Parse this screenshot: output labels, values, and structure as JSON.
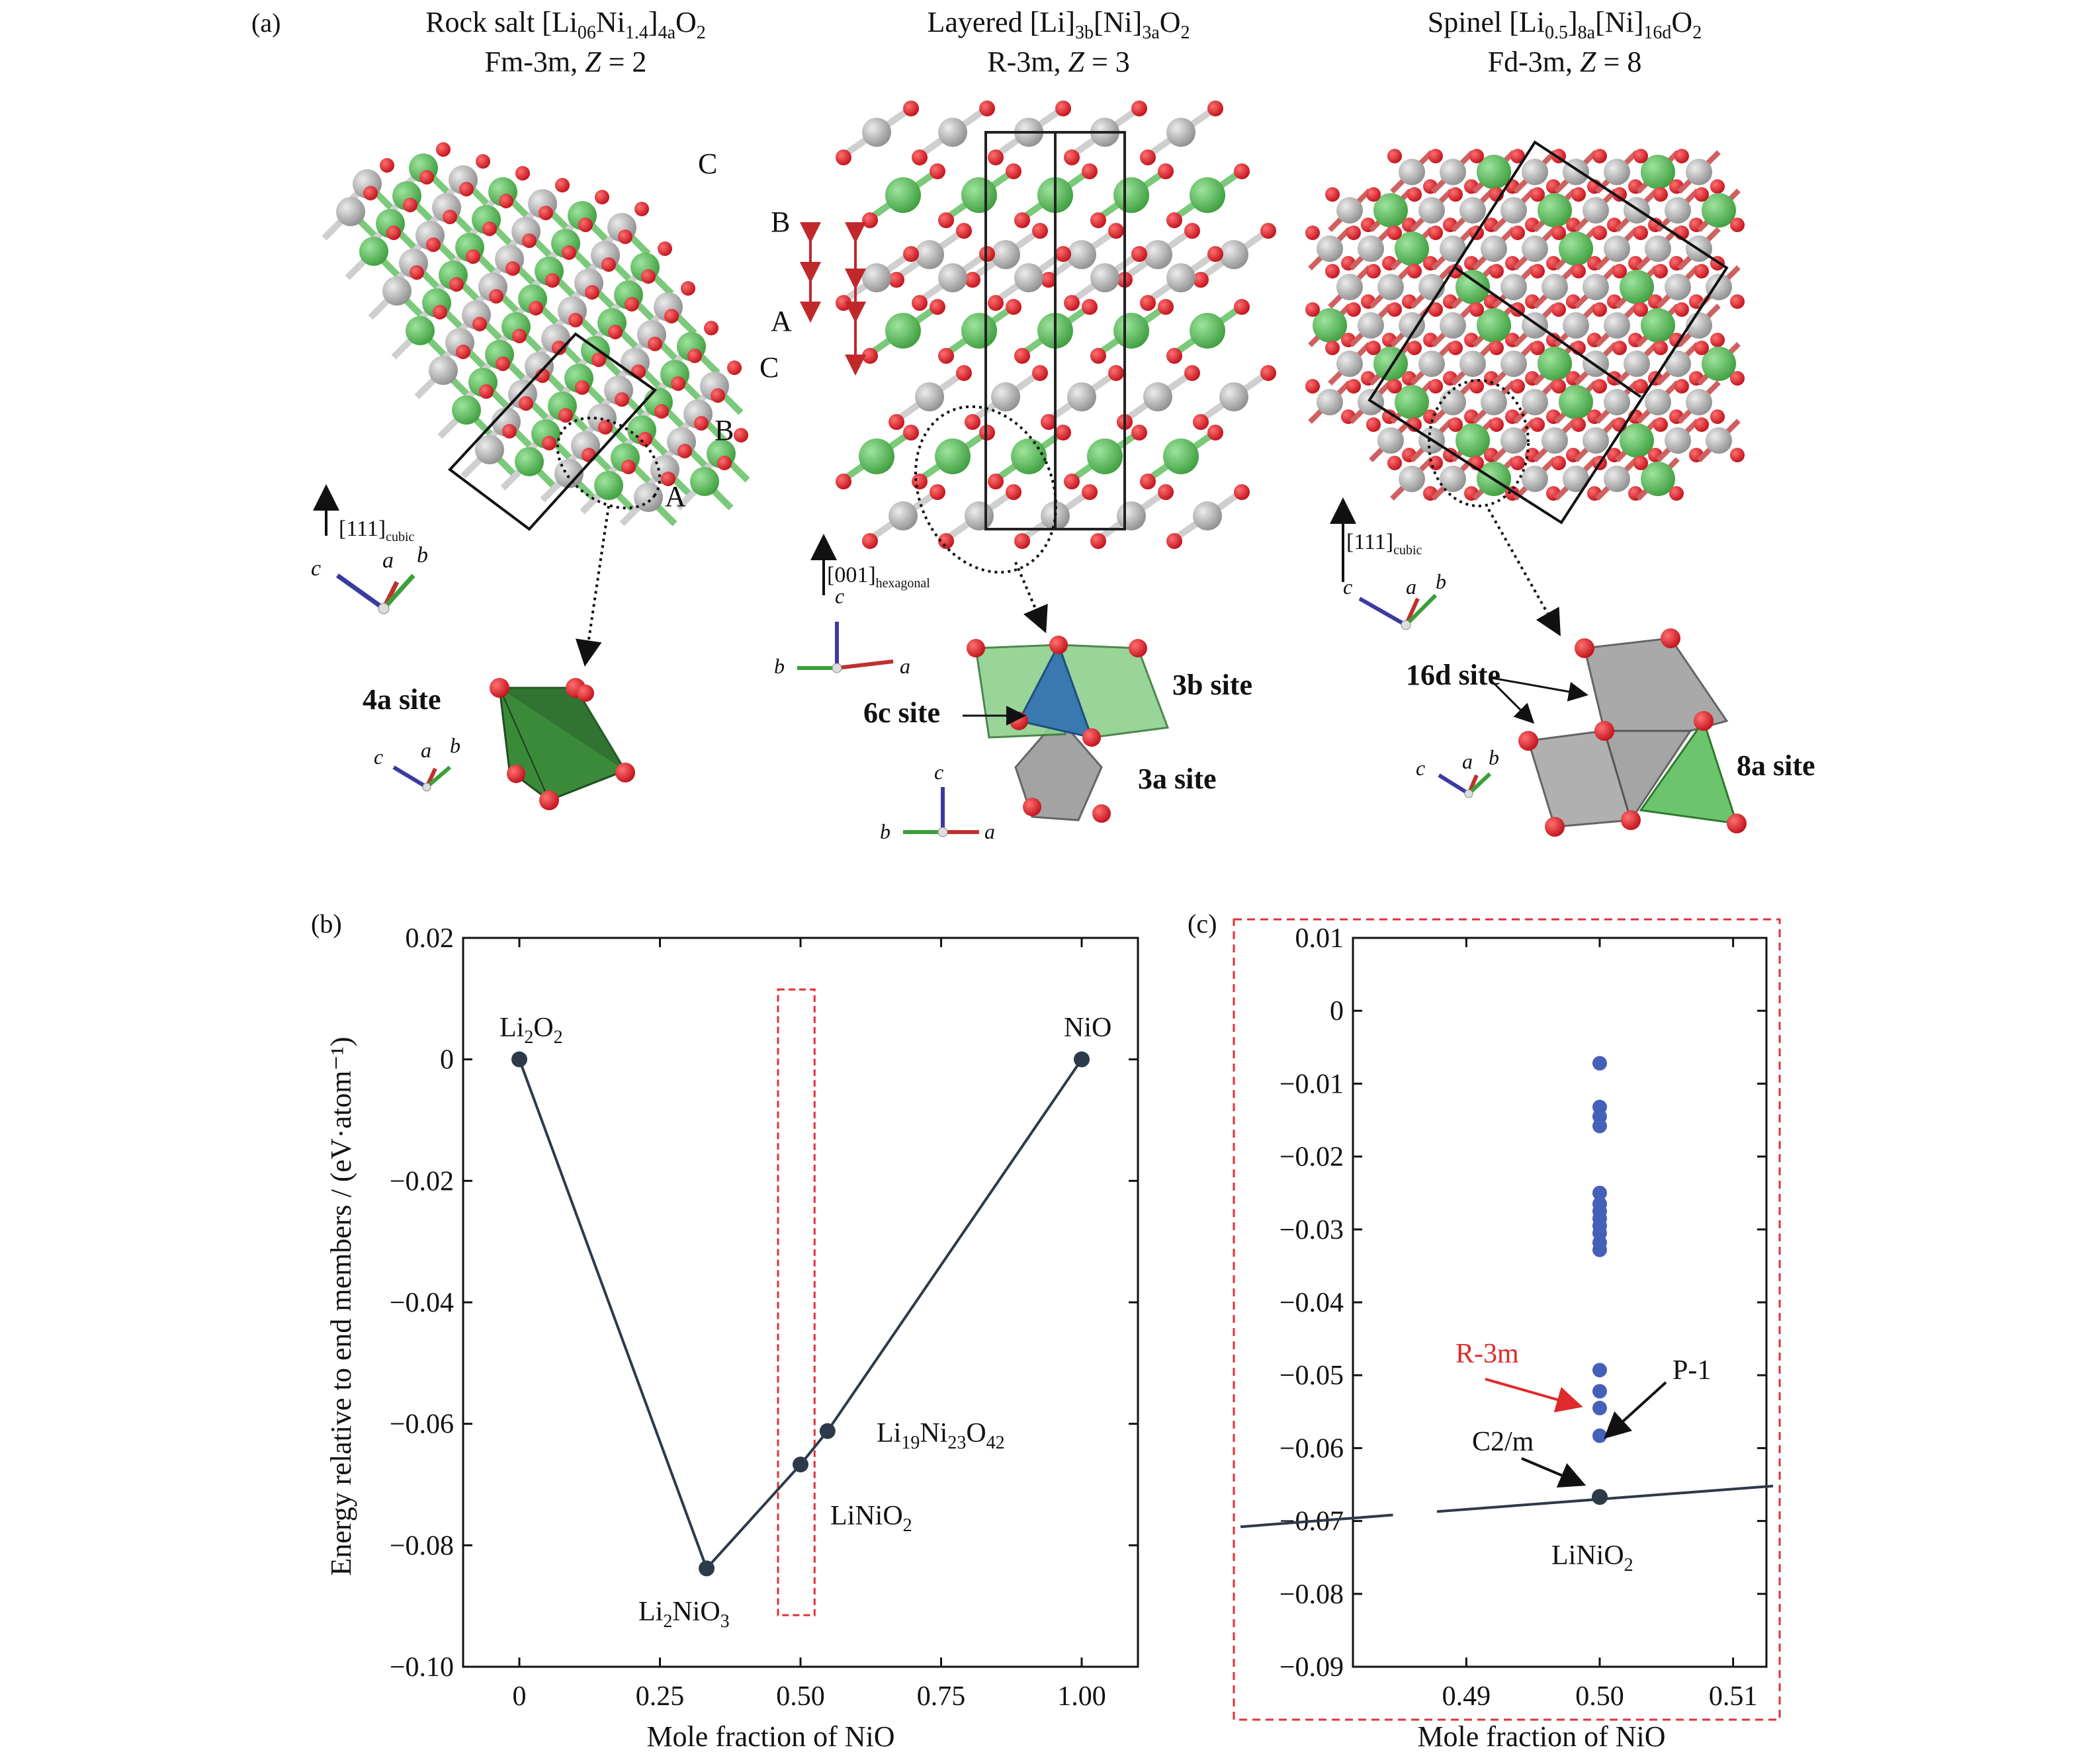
{
  "panel_a": {
    "label": "(a)",
    "rocksalt": {
      "title_prefix": "Rock salt [Li",
      "title_sub1": "06",
      "title_mid1": "Ni",
      "title_sub2": "1.4",
      "title_mid2": "]",
      "title_sub3": "4a",
      "title_mid3": "O",
      "title_sub4": "2",
      "spacegroup": "Fm-3m, ",
      "z_label": "Z",
      "z_value": " = 2",
      "stacking": [
        "C",
        "B",
        "A",
        "C",
        "B",
        "A"
      ],
      "axis_main": "[111]",
      "axis_sub": "cubic",
      "axes": {
        "a": "a",
        "b": "b",
        "c": "c"
      },
      "site_label": "4a site"
    },
    "layered": {
      "title_prefix": "Layered [Li]",
      "title_sub1": "3b",
      "title_mid1": "[Ni]",
      "title_sub2": "3a",
      "title_mid2": "O",
      "title_sub3": "2",
      "spacegroup": "R-3m, ",
      "z_label": "Z",
      "z_value": " = 3",
      "axis_main": "[001]",
      "axis_sub": "hexagonal",
      "axes": {
        "a": "a",
        "b": "b",
        "c": "c"
      },
      "site_6c": "6c site",
      "site_3b": "3b site",
      "site_3a": "3a site"
    },
    "spinel": {
      "title_prefix": "Spinel [Li",
      "title_sub1": "0.5",
      "title_mid1": "]",
      "title_sub2": "8a",
      "title_mid2": "[Ni]",
      "title_sub3": "16d",
      "title_mid3": "O",
      "title_sub4": "2",
      "spacegroup": "Fd-3m, ",
      "z_label": "Z",
      "z_value": " = 8",
      "axis_main": "[111]",
      "axis_sub": "cubic",
      "axes": {
        "a": "a",
        "b": "b",
        "c": "c"
      },
      "site_16d": "16d site",
      "site_8a": "8a site"
    }
  },
  "colors": {
    "oxygen": "#e0202a",
    "nickel": "#b8b8b8",
    "lithium": "#6cc46c",
    "line": "#2d3a4a",
    "dashed_box": "#e0303a",
    "blue_points": "#4560b8",
    "r3m_text": "#e02a2a"
  },
  "chart_data": [
    {
      "panel": "(b)",
      "type": "line",
      "xlabel": "Mole fraction of NiO",
      "ylabel": "Energy relative to end members / (eV·atom⁻¹)",
      "xlim": [
        -0.1,
        1.1
      ],
      "ylim": [
        -0.1,
        0.02
      ],
      "xticks": [
        "0",
        "0.25",
        "0.50",
        "0.75",
        "1.00"
      ],
      "yticks": [
        "0.02",
        "0",
        "−0.02",
        "−0.04",
        "−0.06",
        "−0.08",
        "−0.10"
      ],
      "hull": [
        {
          "x": 0.0,
          "y": 0.0,
          "label": "Li2O2"
        },
        {
          "x": 0.333,
          "y": -0.0838,
          "label": "Li2NiO3"
        },
        {
          "x": 0.5,
          "y": -0.0667,
          "label": "LiNiO2"
        },
        {
          "x": 0.548,
          "y": -0.0612,
          "label": "Li19Ni23O42"
        },
        {
          "x": 1.0,
          "y": 0.0,
          "label": "NiO"
        }
      ],
      "labels": {
        "li2o2": "Li",
        "li2o2_s1": "2",
        "li2o2_m1": "O",
        "li2o2_s2": "2",
        "nio": "NiO",
        "li2nio3": "Li",
        "li2nio3_s1": "2",
        "li2nio3_m1": "NiO",
        "li2nio3_s2": "3",
        "linio2": "LiNiO",
        "linio2_s1": "2",
        "li19": "Li",
        "li19_s1": "19",
        "li19_m1": "Ni",
        "li19_s2": "23",
        "li19_m2": "O",
        "li19_s3": "42"
      },
      "highlight_box": {
        "x0": 0.46,
        "x1": 0.525,
        "y0": -0.0915,
        "y1": 0.0115
      }
    },
    {
      "panel": "(c)",
      "type": "scatter",
      "xlabel": "Mole fraction of NiO",
      "xlim": [
        0.4815,
        0.5125
      ],
      "ylim": [
        -0.09,
        0.01
      ],
      "xticks": [
        "0.49",
        "0.50",
        "0.51"
      ],
      "yticks": [
        "0.01",
        "0",
        "−0.01",
        "−0.02",
        "−0.03",
        "−0.04",
        "−0.05",
        "−0.06",
        "−0.07",
        "−0.08",
        "−0.09"
      ],
      "x": 0.5,
      "points_y": [
        -0.0072,
        -0.0132,
        -0.0145,
        -0.0158,
        -0.025,
        -0.0265,
        -0.0275,
        -0.0285,
        -0.0295,
        -0.0305,
        -0.0318,
        -0.0328,
        -0.0493,
        -0.0522,
        -0.0545,
        -0.0583
      ],
      "hull_line": {
        "x0": 0.4815,
        "y0": -0.0696,
        "x1": 0.5125,
        "y1": -0.0652,
        "gap": [
          0.4845,
          0.4878
        ]
      },
      "hull_point": {
        "x": 0.5,
        "y": -0.0667
      },
      "annotations": {
        "r3m": "R-3m",
        "p1": "P-1",
        "c2m": "C2/m",
        "linio2": "LiNiO",
        "linio2_s1": "2"
      }
    }
  ]
}
